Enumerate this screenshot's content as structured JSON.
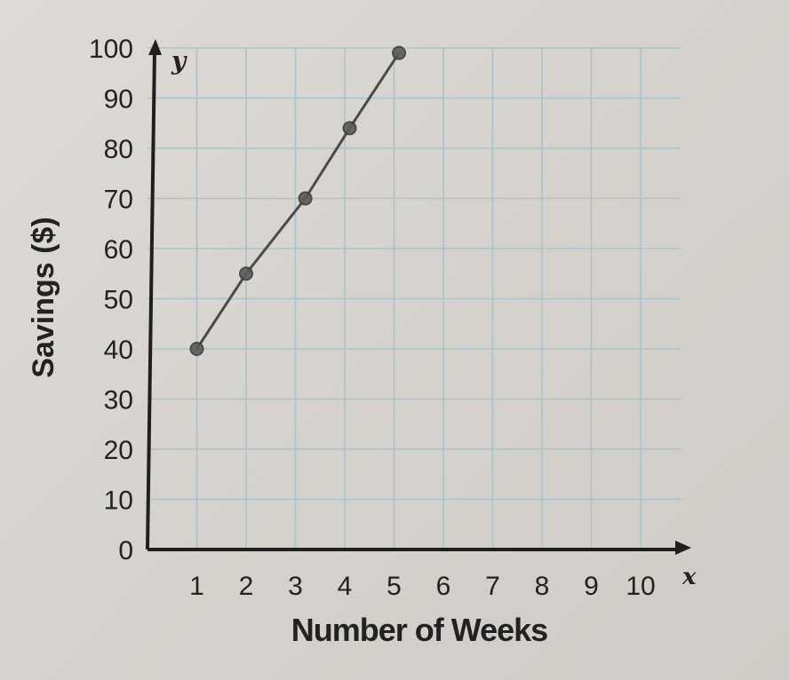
{
  "chart_data": {
    "type": "line",
    "xlabel": "Number of Weeks",
    "ylabel": "Savings ($)",
    "x_axis_letter": "x",
    "y_axis_letter": "y",
    "xlim": [
      0,
      11
    ],
    "ylim": [
      0,
      100
    ],
    "x_ticks": [
      1,
      2,
      3,
      4,
      5,
      6,
      7,
      8,
      9,
      10
    ],
    "y_ticks": [
      0,
      10,
      20,
      30,
      40,
      50,
      60,
      70,
      80,
      90,
      100
    ],
    "grid": true,
    "series": [
      {
        "x": [
          1,
          2,
          3.2,
          4.1,
          5.1
        ],
        "y": [
          40,
          55,
          70,
          84,
          99
        ]
      }
    ]
  },
  "colors": {
    "paper": "#dcd9d4",
    "grid": "#a9c3cb",
    "axis": "#1f1f1f",
    "pencil": "#4a4a4a",
    "text": "#222222"
  }
}
